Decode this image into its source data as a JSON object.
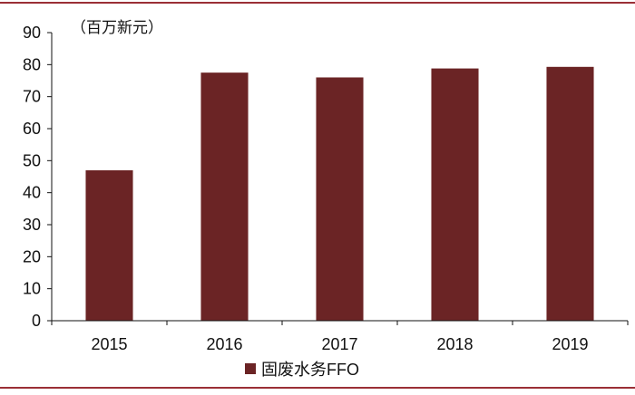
{
  "colors": {
    "frame": "#9b2f36",
    "bar": "#6b2425",
    "axis": "#111111",
    "background": "#ffffff"
  },
  "chart_data": {
    "type": "bar",
    "title": "",
    "unit_label": "（百万新元）",
    "xlabel": "",
    "ylabel": "",
    "categories": [
      "2015",
      "2016",
      "2017",
      "2018",
      "2019"
    ],
    "series": [
      {
        "name": "固废水务FFO",
        "values": [
          47,
          77.5,
          76,
          78.8,
          79.3
        ]
      }
    ],
    "ylim": [
      0,
      90
    ],
    "yticks": [
      0,
      10,
      20,
      30,
      40,
      50,
      60,
      70,
      80,
      90
    ],
    "grid": false,
    "legend_position": "bottom"
  }
}
